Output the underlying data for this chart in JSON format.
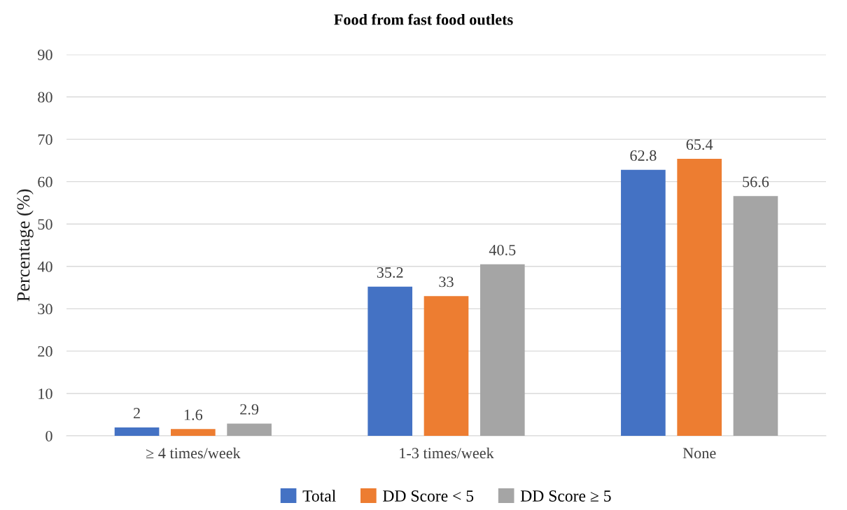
{
  "chart_data": {
    "type": "bar",
    "title": "Food from fast food outlets",
    "ylabel": "Percentage (%)",
    "categories": [
      "≥ 4 times/week",
      "1-3 times/week",
      "None"
    ],
    "series": [
      {
        "name": "Total",
        "color": "#4472c4",
        "values": [
          2,
          35.2,
          62.8
        ]
      },
      {
        "name": "DD Score < 5",
        "color": "#ed7d31",
        "values": [
          1.6,
          33,
          65.4
        ]
      },
      {
        "name": "DD Score ≥ 5",
        "color": "#a5a5a5",
        "values": [
          2.9,
          40.5,
          56.6
        ]
      }
    ],
    "ylim": [
      0,
      90
    ],
    "yticks": [
      0,
      10,
      20,
      30,
      40,
      50,
      60,
      70,
      80,
      90
    ],
    "grid": "y",
    "legend": "bottom",
    "data_labels": true
  }
}
